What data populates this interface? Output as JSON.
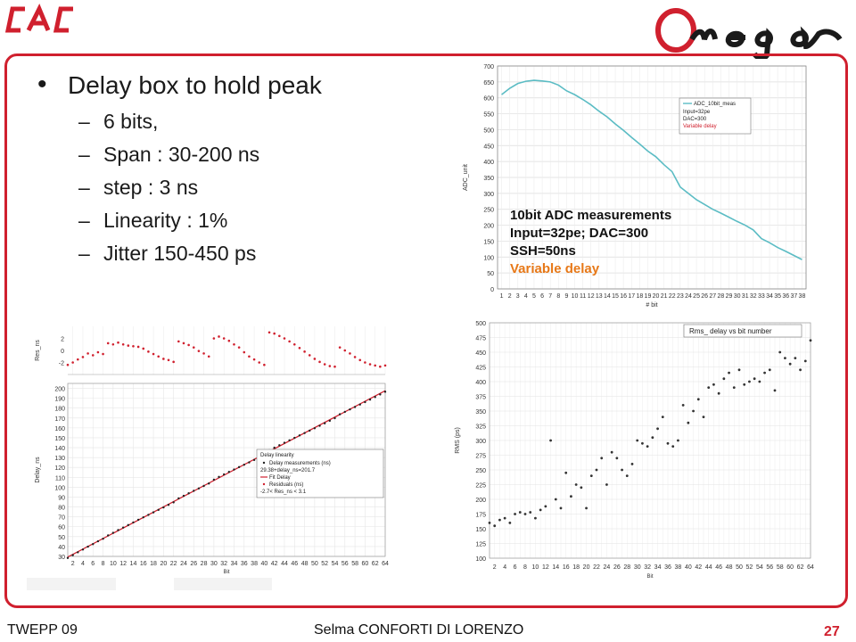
{
  "brand": {
    "left_logo": "CAC",
    "right_logo": "Omega",
    "accent": "#d0202e"
  },
  "bullets": {
    "main": "Delay box to hold peak",
    "items": [
      "6 bits,",
      "Span : 30-200 ns",
      "step : 3 ns",
      "Linearity : 1%",
      "Jitter 150-450 ps"
    ]
  },
  "footer": {
    "left": "TWEPP 09",
    "center": "Selma CONFORTI DI LORENZO",
    "page": "27"
  },
  "chart_data": [
    {
      "type": "line",
      "xlabel": "# bit",
      "ylabel": "ADC_unit",
      "ylim": [
        0,
        700
      ],
      "x": [
        1,
        2,
        3,
        4,
        5,
        6,
        7,
        8,
        9,
        10,
        11,
        12,
        13,
        14,
        15,
        16,
        17,
        18,
        19,
        20,
        21,
        22,
        23,
        24,
        25,
        26,
        27,
        28,
        29,
        30,
        31,
        32,
        33,
        34,
        35,
        36,
        37,
        38
      ],
      "series": [
        {
          "name": "ADC_10bit_meas",
          "values": [
            610,
            630,
            645,
            652,
            655,
            653,
            650,
            640,
            622,
            610,
            595,
            578,
            558,
            540,
            518,
            498,
            476,
            455,
            433,
            415,
            390,
            368,
            320,
            300,
            280,
            265,
            250,
            238,
            225,
            212,
            200,
            185,
            158,
            145,
            130,
            118,
            105,
            92
          ]
        }
      ],
      "legend": {
        "title": "ADC_10bit_meas",
        "lines": [
          "Input=32pe",
          "DAC=300",
          "Variable delay"
        ],
        "placement": "top-right"
      },
      "annotation": {
        "lines": [
          "10bit ADC measurements",
          "Input=32pe; DAC=300",
          "SSH=50ns"
        ],
        "highlight": "Variable delay",
        "highlight_color": "#e77817"
      },
      "line_color": "#5bbcc4"
    },
    {
      "type": "scatter",
      "xlabel": "Bit",
      "ylabel": "Delay_ns",
      "ylim": [
        30,
        205
      ],
      "yticks": [
        30,
        40,
        50,
        60,
        70,
        80,
        90,
        100,
        110,
        120,
        130,
        140,
        150,
        160,
        170,
        180,
        190,
        200
      ],
      "xticks": [
        2,
        4,
        6,
        8,
        10,
        12,
        14,
        16,
        18,
        20,
        22,
        24,
        26,
        28,
        30,
        32,
        34,
        36,
        38,
        40,
        42,
        44,
        46,
        48,
        50,
        52,
        54,
        56,
        58,
        60,
        62,
        64
      ],
      "fit": {
        "intercept": 29.38,
        "slope": 2.67
      },
      "legend": {
        "title": "Delay linearity",
        "lines": [
          "Delay measurements (ns)",
          "29.38+delay_ns=201.7",
          "Fit Delay",
          "Residuals (ns)",
          "-2.7< Res_ns < 3.1"
        ],
        "placement": "bottom-right"
      },
      "residuals": {
        "ylabel": "Res_ns",
        "yticks": [
          -2,
          0,
          2
        ],
        "values": [
          -2.4,
          -2.0,
          -1.5,
          -1.1,
          -0.5,
          -0.8,
          -0.3,
          -0.6,
          1.2,
          1.0,
          1.3,
          1.0,
          0.8,
          0.7,
          0.6,
          0.3,
          -0.2,
          -0.6,
          -1.0,
          -1.4,
          -1.6,
          -1.9,
          1.5,
          1.2,
          0.9,
          0.5,
          -0.1,
          -0.5,
          -1.0,
          2.0,
          2.3,
          2.0,
          1.6,
          1.0,
          0.5,
          -0.3,
          -1.0,
          -1.5,
          -2.0,
          -2.4,
          3.0,
          2.8,
          2.4,
          2.0,
          1.5,
          1.0,
          0.4,
          -0.2,
          -0.8,
          -1.4,
          -1.9,
          -2.3,
          -2.6,
          -2.7,
          0.5,
          0.0,
          -0.5,
          -1.1,
          -1.6,
          -2.0,
          -2.3,
          -2.5,
          -2.7,
          -2.5
        ]
      },
      "point_color": "#d0202e",
      "line_color": "#d0202e"
    },
    {
      "type": "scatter",
      "xlabel": "Bit",
      "ylabel": "RMS (ps)",
      "ylim": [
        100,
        500
      ],
      "yticks": [
        100,
        125,
        150,
        175,
        200,
        225,
        250,
        275,
        300,
        325,
        350,
        375,
        400,
        425,
        450,
        475,
        500
      ],
      "xticks": [
        2,
        4,
        6,
        8,
        10,
        12,
        14,
        16,
        18,
        20,
        22,
        24,
        26,
        28,
        30,
        32,
        34,
        36,
        38,
        40,
        42,
        44,
        46,
        48,
        50,
        52,
        54,
        56,
        58,
        60,
        62,
        64
      ],
      "legend": {
        "title": "Rms_ delay vs bit number",
        "placement": "top-right"
      },
      "x": [
        1,
        2,
        3,
        4,
        5,
        6,
        7,
        8,
        9,
        10,
        11,
        12,
        13,
        14,
        15,
        16,
        17,
        18,
        19,
        20,
        21,
        22,
        23,
        24,
        25,
        26,
        27,
        28,
        29,
        30,
        31,
        32,
        33,
        34,
        35,
        36,
        37,
        38,
        39,
        40,
        41,
        42,
        43,
        44,
        45,
        46,
        47,
        48,
        49,
        50,
        51,
        52,
        53,
        54,
        55,
        56,
        57,
        58,
        59,
        60,
        61,
        62,
        63,
        64
      ],
      "values": [
        160,
        155,
        165,
        168,
        160,
        175,
        178,
        175,
        178,
        168,
        182,
        188,
        300,
        200,
        185,
        245,
        205,
        225,
        220,
        185,
        240,
        250,
        270,
        225,
        280,
        270,
        250,
        240,
        260,
        300,
        295,
        290,
        305,
        320,
        340,
        295,
        290,
        300,
        360,
        330,
        350,
        370,
        340,
        390,
        395,
        380,
        405,
        415,
        390,
        420,
        395,
        400,
        405,
        400,
        415,
        420,
        385,
        450,
        440,
        430,
        440,
        420,
        435,
        470
      ],
      "point_color": "#333333"
    }
  ]
}
